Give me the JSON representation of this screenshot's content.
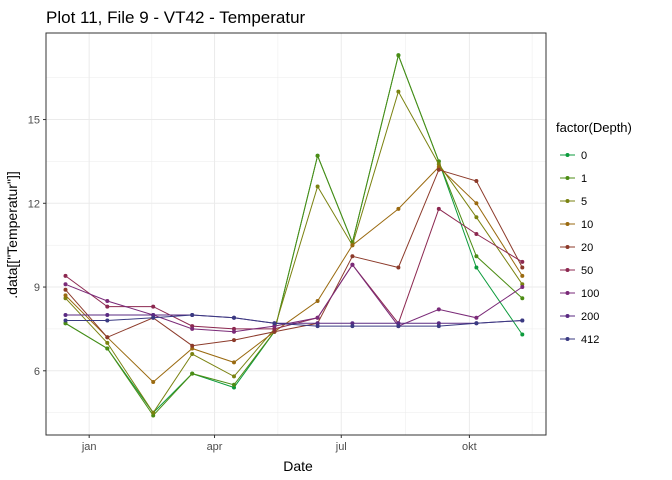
{
  "chart_data": {
    "type": "line",
    "title": "Plot 11, File 9 - VT42  -  Temperatur",
    "xlabel": "Date",
    "ylabel": ".data[[\"Temperatur\"]]",
    "x": [
      "2020-12-15",
      "2021-01-14",
      "2021-02-16",
      "2021-03-16",
      "2021-04-15",
      "2021-05-14",
      "2021-06-14",
      "2021-07-09",
      "2021-08-11",
      "2021-09-09",
      "2021-10-06",
      "2021-11-08"
    ],
    "x_ticks": [
      {
        "date": "2021-01-01",
        "label": "jan"
      },
      {
        "date": "2021-04-01",
        "label": "apr"
      },
      {
        "date": "2021-07-01",
        "label": "jul"
      },
      {
        "date": "2021-10-01",
        "label": "okt"
      }
    ],
    "xlim": [
      "2020-12-01",
      "2021-11-25"
    ],
    "ylim": [
      3.7,
      18.1
    ],
    "y_ticks": [
      6,
      9,
      12,
      15
    ],
    "grid": true,
    "legend": {
      "title": "factor(Depth)",
      "placement": "right"
    },
    "series": [
      {
        "name": "0",
        "color": "#0c9b3c",
        "values": [
          7.7,
          6.8,
          4.5,
          5.9,
          5.4,
          7.4,
          13.7,
          10.6,
          17.3,
          13.5,
          9.7,
          7.3
        ]
      },
      {
        "name": "1",
        "color": "#4c8c14",
        "values": [
          7.7,
          6.8,
          4.4,
          5.9,
          5.5,
          7.4,
          13.7,
          10.6,
          17.3,
          13.5,
          10.1,
          8.6
        ]
      },
      {
        "name": "5",
        "color": "#7a8210",
        "values": [
          8.6,
          7.0,
          4.5,
          6.6,
          5.8,
          7.5,
          12.6,
          10.5,
          16.0,
          13.4,
          11.5,
          9.1
        ]
      },
      {
        "name": "10",
        "color": "#9a6a10",
        "values": [
          8.7,
          7.2,
          5.6,
          6.8,
          6.3,
          7.4,
          8.5,
          10.5,
          11.8,
          13.3,
          12.0,
          9.4
        ]
      },
      {
        "name": "20",
        "color": "#8c3a2a",
        "values": [
          8.9,
          7.2,
          7.9,
          6.9,
          7.1,
          7.4,
          7.7,
          10.1,
          9.7,
          13.2,
          12.8,
          9.7
        ]
      },
      {
        "name": "50",
        "color": "#8c2850",
        "values": [
          9.4,
          8.3,
          8.3,
          7.6,
          7.5,
          7.5,
          7.9,
          9.8,
          7.7,
          11.8,
          10.9,
          9.9
        ]
      },
      {
        "name": "100",
        "color": "#7a2a78",
        "values": [
          9.1,
          8.5,
          8.0,
          7.5,
          7.4,
          7.6,
          7.9,
          9.8,
          7.6,
          8.2,
          7.9,
          9.0
        ]
      },
      {
        "name": "200",
        "color": "#5a2a82",
        "values": [
          8.0,
          8.0,
          8.0,
          8.0,
          7.9,
          7.7,
          7.7,
          7.7,
          7.7,
          7.7,
          7.7,
          7.8
        ]
      },
      {
        "name": "412",
        "color": "#3a3a82",
        "values": [
          7.8,
          7.8,
          7.9,
          8.0,
          7.9,
          7.7,
          7.6,
          7.6,
          7.6,
          7.6,
          7.7,
          7.8
        ]
      }
    ]
  }
}
